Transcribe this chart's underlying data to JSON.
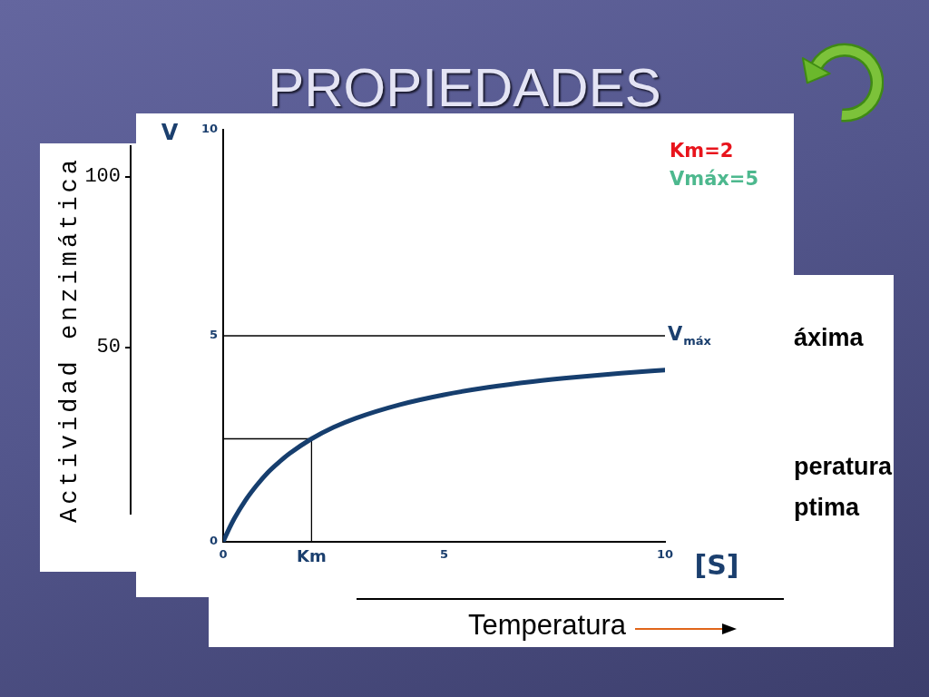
{
  "chart_data": [
    {
      "type": "other",
      "ylabel": "Actividad enzimática",
      "annotations": [
        "100",
        "50"
      ]
    },
    {
      "type": "line",
      "title": "PROPIEDADES",
      "xlabel": "[S]",
      "ylabel": "V",
      "xlim": [
        0,
        10
      ],
      "ylim": [
        0,
        10
      ],
      "xticks": [
        0,
        {
          "value": 2,
          "label": "Km"
        },
        5,
        10
      ],
      "yticks": [
        0,
        5,
        10
      ],
      "ref_lines": [
        {
          "axis": "y",
          "value": 5,
          "label": "V$_{máx}$",
          "color": "#000000"
        }
      ],
      "annotations": [
        "Km=2",
        "Vmáx=5"
      ],
      "series": [
        {
          "color": "#163e6e",
          "x": [
            0,
            0.1,
            0.25,
            0.5,
            0.75,
            1,
            1.25,
            1.5,
            2,
            2.5,
            3,
            4,
            5,
            6,
            7,
            8,
            9,
            10
          ],
          "values": [
            0,
            0.24,
            0.56,
            1.0,
            1.36,
            1.67,
            1.92,
            2.14,
            2.5,
            2.78,
            3.0,
            3.33,
            3.57,
            3.75,
            3.89,
            4.0,
            4.09,
            4.17
          ]
        },
        {
          "color": "#000000",
          "x": [
            0,
            2,
            2
          ],
          "values": [
            2.5,
            2.5,
            0
          ]
        }
      ]
    },
    {
      "type": "other",
      "xlabel": "Temperatura",
      "annotations": [
        "áxima",
        "peratura",
        "ptima"
      ]
    }
  ]
}
